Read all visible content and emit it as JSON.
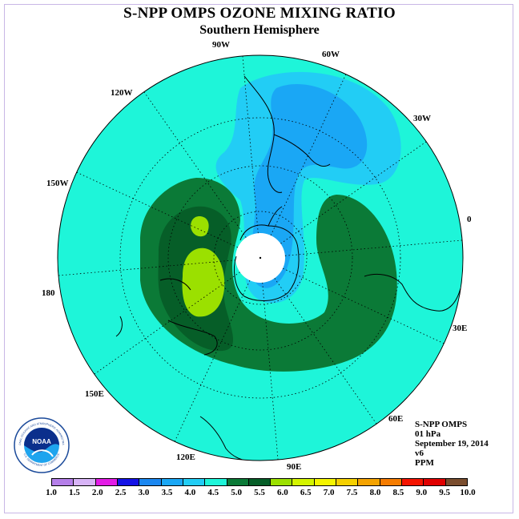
{
  "header": {
    "title": "S-NPP OMPS OZONE MIXING RATIO",
    "subtitle": "Southern Hemisphere"
  },
  "map": {
    "projection": "south-polar-stereographic",
    "longitude_labels": [
      "90W",
      "60W",
      "30W",
      "0",
      "30E",
      "60E",
      "90E",
      "120E",
      "150E",
      "180",
      "150W",
      "120W"
    ],
    "colors": {
      "background_field": "#1ef5d9",
      "range_4.0_4.5": "#22cdf5",
      "range_3.5_4.0": "#1aa7f5",
      "range_3.0_3.5": "#1b87f0",
      "range_5.0_5.5": "#0b7a37",
      "range_5.5_6.0": "#065e28",
      "range_6.0_6.5": "#9be000",
      "no_data": "#ffffff"
    }
  },
  "info": {
    "lines": [
      "S-NPP OMPS",
      "01 hPa",
      "September 19, 2014",
      "v6",
      "PPM"
    ]
  },
  "colorbar": {
    "colors": [
      "#b57fe9",
      "#d8b4f7",
      "#e31ce6",
      "#1412e6",
      "#1b87f0",
      "#1aa7f5",
      "#22cdf5",
      "#1ef5d9",
      "#0b7a37",
      "#065e28",
      "#9be000",
      "#d4f500",
      "#f5f500",
      "#f5d000",
      "#f5a300",
      "#f57c00",
      "#f51400",
      "#e00000",
      "#7a4d2e"
    ],
    "tick_labels": [
      "1.0",
      "1.5",
      "2.0",
      "2.5",
      "3.0",
      "3.5",
      "4.0",
      "4.5",
      "5.0",
      "5.5",
      "6.0",
      "6.5",
      "7.0",
      "7.5",
      "8.0",
      "8.5",
      "9.0",
      "9.5",
      "10.0"
    ]
  },
  "logo": {
    "text": "NOAA",
    "ring_text": "NATIONAL OCEANIC AND ATMOSPHERIC ADMINISTRATION",
    "ring_text_bottom": "U.S. DEPARTMENT OF COMMERCE"
  }
}
